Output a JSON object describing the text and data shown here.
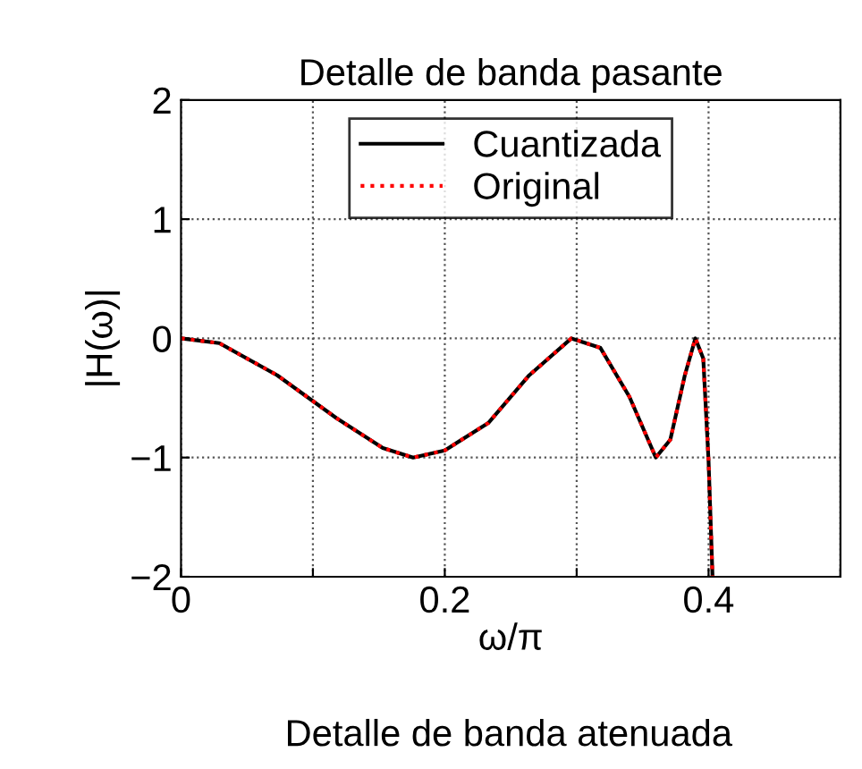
{
  "chart_data": {
    "type": "line",
    "title": "Detalle de banda pasante",
    "xlabel": "ω/π",
    "ylabel": "|H(ω)|",
    "annotations": [
      "Detalle de banda atenuada"
    ],
    "xlim": [
      0,
      0.5
    ],
    "ylim": [
      -2,
      2
    ],
    "xticks": [
      0,
      {
        "value": 0.1,
        "label": null
      },
      0.2,
      {
        "value": 0.3,
        "label": null
      },
      0.4,
      {
        "value": 0.5,
        "label": null
      }
    ],
    "yticks": [
      -2,
      -1,
      0,
      1,
      2
    ],
    "grid": true,
    "legend": "top",
    "marker": "none",
    "series": [
      {
        "name": "Cuantizada",
        "color": "#000000",
        "line_style": "solid",
        "x": [
          0,
          0.029,
          0.073,
          0.118,
          0.153,
          0.176,
          0.2,
          0.233,
          0.264,
          0.296,
          0.318,
          0.34,
          0.36,
          0.371,
          0.382,
          0.39,
          0.396,
          0.4,
          0.403
        ],
        "values": [
          0,
          -0.04,
          -0.31,
          -0.67,
          -0.92,
          -1.0,
          -0.94,
          -0.71,
          -0.31,
          0,
          -0.08,
          -0.49,
          -1.0,
          -0.85,
          -0.31,
          0,
          -0.17,
          -1.03,
          -2.0
        ]
      },
      {
        "name": "Original",
        "color": "#ff0000",
        "line_style": "dotted",
        "x": [
          0,
          0.029,
          0.073,
          0.118,
          0.153,
          0.176,
          0.2,
          0.233,
          0.264,
          0.296,
          0.318,
          0.34,
          0.36,
          0.371,
          0.382,
          0.39,
          0.396,
          0.4,
          0.403
        ],
        "values": [
          0,
          -0.04,
          -0.31,
          -0.67,
          -0.92,
          -1.0,
          -0.94,
          -0.71,
          -0.31,
          0,
          -0.08,
          -0.49,
          -1.0,
          -0.85,
          -0.31,
          0,
          -0.17,
          -1.03,
          -2.0
        ]
      }
    ]
  }
}
